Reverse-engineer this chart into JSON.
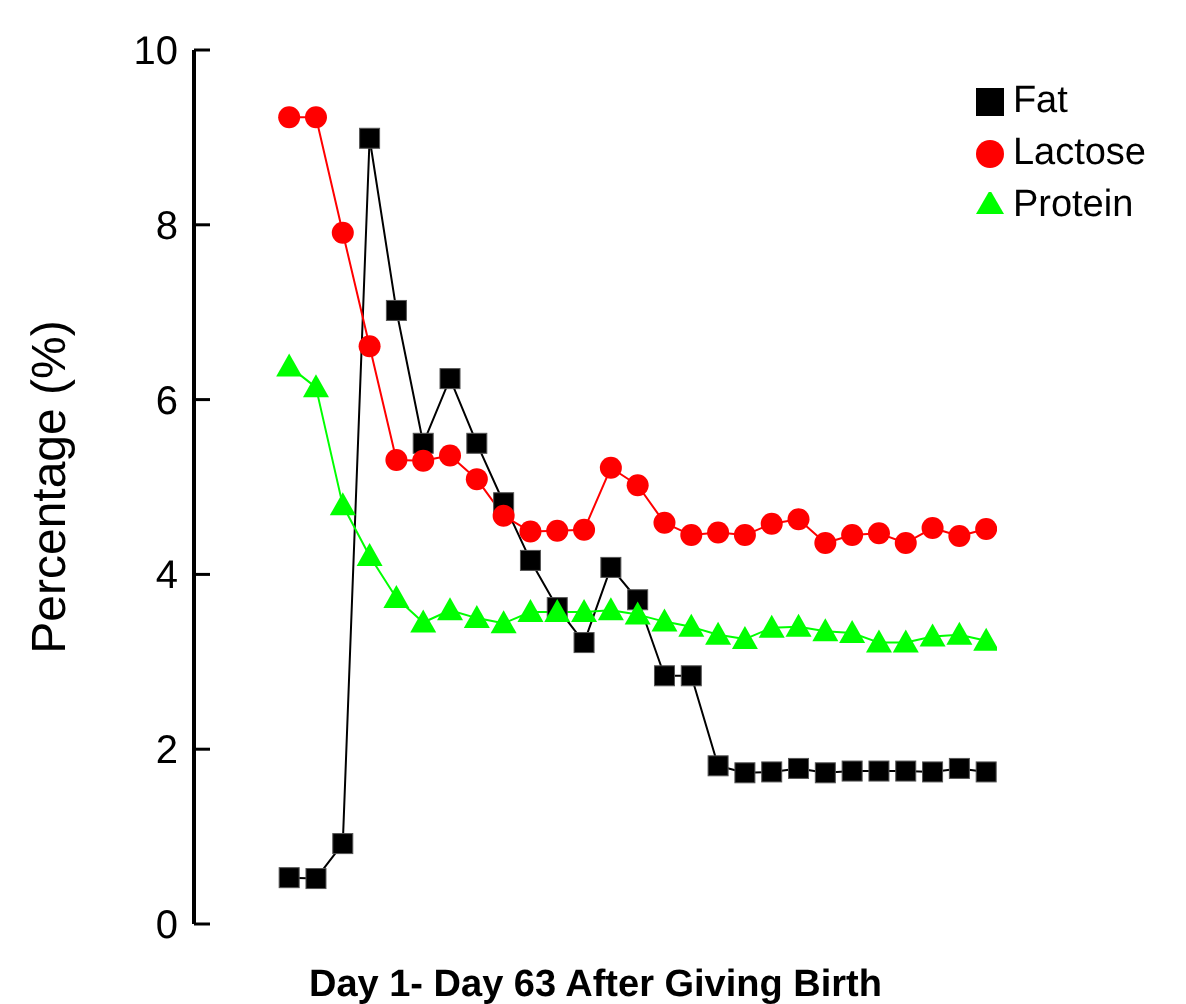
{
  "chart_data": {
    "type": "line",
    "xlabel": "Day 1- Day 63 After Giving Birth",
    "ylabel": "Percentage    (%)",
    "categories": [
      null,
      null,
      null,
      null,
      null,
      null,
      null,
      null,
      null,
      null,
      null,
      null,
      null,
      null,
      null,
      null,
      null,
      null,
      null,
      null,
      null,
      null,
      null,
      null,
      null,
      null,
      null
    ],
    "series": [
      {
        "name": "Fat",
        "color": "#000000",
        "marker": "square",
        "values": [
          0.53,
          0.52,
          0.92,
          8.99,
          7.02,
          5.5,
          6.24,
          5.5,
          4.82,
          4.16,
          3.62,
          3.22,
          4.08,
          3.71,
          2.84,
          2.84,
          1.81,
          1.73,
          1.74,
          1.78,
          1.73,
          1.75,
          1.75,
          1.75,
          1.74,
          1.78,
          1.74
        ]
      },
      {
        "name": "Lactose",
        "color": "#ff0000",
        "marker": "circle",
        "values": [
          9.23,
          9.23,
          7.91,
          6.61,
          5.31,
          5.3,
          5.36,
          5.09,
          4.67,
          4.49,
          4.5,
          4.51,
          5.22,
          5.02,
          4.59,
          4.45,
          4.48,
          4.45,
          4.58,
          4.63,
          4.36,
          4.45,
          4.47,
          4.36,
          4.53,
          4.44,
          4.52
        ]
      },
      {
        "name": "Protein",
        "color": "#00ff00",
        "marker": "triangle",
        "values": [
          6.38,
          6.14,
          4.79,
          4.21,
          3.73,
          3.45,
          3.59,
          3.5,
          3.44,
          3.57,
          3.57,
          3.57,
          3.59,
          3.54,
          3.46,
          3.4,
          3.31,
          3.26,
          3.39,
          3.4,
          3.35,
          3.33,
          3.22,
          3.22,
          3.29,
          3.31,
          3.24
        ]
      }
    ],
    "ylim": [
      0,
      10
    ],
    "yticks": [
      0,
      2,
      4,
      6,
      8,
      10
    ],
    "grid": false,
    "legend": "top right",
    "line_style": "solid"
  }
}
